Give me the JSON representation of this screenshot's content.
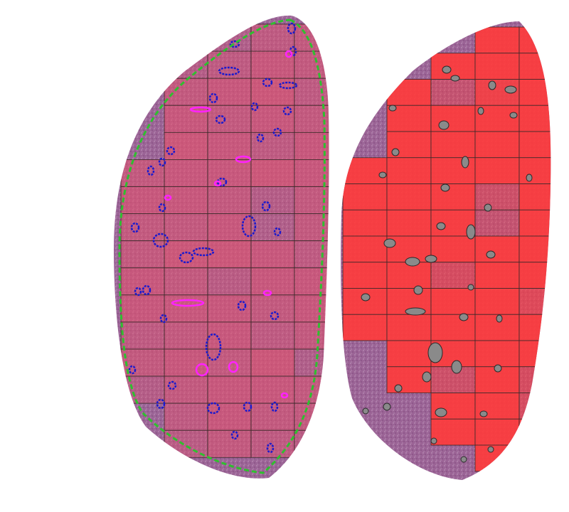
{
  "image": {
    "background": "#ffffff",
    "tissue_color": "#a06a9a",
    "tissue_dark": "#8a4f86",
    "outline_color": "#2fbf2f",
    "vessel_blue": "#1a1acd",
    "vessel_magenta": "#ff22ff",
    "grid_line": "#3a2a2a",
    "left_panel": {
      "tile_levels": [
        [
          0,
          0,
          0.2,
          0.5,
          0.6,
          0.4,
          0
        ],
        [
          0,
          0.3,
          0.5,
          0.7,
          0.6,
          0.3,
          0
        ],
        [
          0,
          0.6,
          0.7,
          0.8,
          0.5,
          0.4,
          0.2
        ],
        [
          0,
          0.7,
          0.6,
          0.7,
          0.6,
          0.6,
          0.4
        ],
        [
          0,
          0.8,
          0.7,
          0.5,
          0.7,
          0.6,
          0.3
        ],
        [
          0.6,
          0.7,
          0.7,
          0.8,
          0.7,
          0.6,
          0.4
        ],
        [
          0.7,
          0.7,
          0.6,
          0.3,
          0.6,
          0.7,
          0.5
        ],
        [
          0.6,
          0.6,
          0.7,
          0.2,
          0.6,
          0.7,
          0.3
        ],
        [
          0.6,
          0.8,
          0.8,
          0.7,
          0.5,
          0.6,
          0.4
        ],
        [
          0.7,
          0.6,
          0.4,
          0.7,
          0.7,
          0.6,
          0.3
        ],
        [
          0.7,
          0.7,
          0.7,
          0.6,
          0.7,
          0.7,
          0.4
        ],
        [
          0.5,
          0.6,
          0.7,
          0.5,
          0.6,
          0.7,
          0.3
        ],
        [
          0.6,
          0.7,
          0.6,
          0.8,
          0.2,
          0.6,
          0.4
        ],
        [
          0.3,
          0.6,
          0.7,
          0.7,
          0.6,
          0.5,
          0.3
        ],
        [
          0,
          0.5,
          0.7,
          0.6,
          0.6,
          0.4,
          0.2
        ],
        [
          0,
          0.4,
          0.6,
          0.5,
          0.4,
          0.3,
          0
        ]
      ]
    },
    "right_panel": {
      "tile_levels": [
        [
          0,
          0,
          0,
          0.9,
          0.9,
          0,
          0
        ],
        [
          0,
          0,
          0.9,
          0.9,
          0.9,
          0,
          0
        ],
        [
          0,
          0.9,
          0.3,
          0.8,
          0.9,
          0.4,
          0
        ],
        [
          0,
          0.9,
          0.9,
          0.9,
          0.9,
          0.9,
          0
        ],
        [
          0,
          0.9,
          0.9,
          0.9,
          0.9,
          0.9,
          0.2
        ],
        [
          0.9,
          0.9,
          0.9,
          0.9,
          0.9,
          0.9,
          0
        ],
        [
          0.9,
          0.9,
          0.9,
          0.4,
          0.9,
          0.9,
          0
        ],
        [
          0.9,
          0.9,
          0.9,
          0.3,
          0.9,
          0.9,
          0
        ],
        [
          0.9,
          0.9,
          0.9,
          0.9,
          0.9,
          0.9,
          0
        ],
        [
          0.9,
          0.9,
          0.5,
          0.9,
          0.9,
          0.9,
          0
        ],
        [
          0.9,
          0.9,
          0.9,
          0.9,
          0.6,
          0.9,
          0
        ],
        [
          0.9,
          0.9,
          0.9,
          0.9,
          0.9,
          0.9,
          0
        ],
        [
          0,
          0.9,
          0.9,
          0.9,
          0.9,
          0.1,
          0
        ],
        [
          0,
          0.9,
          0.4,
          0.9,
          0.5,
          0.9,
          0
        ],
        [
          0,
          0,
          0.9,
          0.9,
          0.5,
          0.9,
          0
        ],
        [
          0,
          0,
          0.9,
          0.9,
          0.9,
          0,
          0
        ],
        [
          0,
          0,
          0,
          0.9,
          0,
          0,
          0
        ]
      ]
    }
  }
}
